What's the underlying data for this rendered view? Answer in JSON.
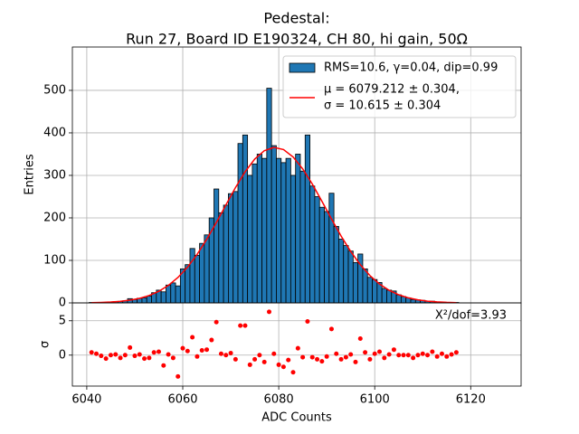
{
  "chart_data": [
    {
      "type": "histogram",
      "title": "Pedestal:",
      "subtitle": "Run 27, Board ID E190324, CH 80, hi gain, 50Ω",
      "ylabel": "Entries",
      "ylim": [
        0,
        602
      ],
      "yticks": [
        0,
        100,
        200,
        300,
        400,
        500
      ],
      "grid": true,
      "legend": "upper right",
      "bins": [
        6040.5,
        6041.5,
        6042.5,
        6043.5,
        6044.5,
        6045.5,
        6046.5,
        6047.5,
        6048.5,
        6049.5,
        6050.5,
        6051.5,
        6052.5,
        6053.5,
        6054.5,
        6055.5,
        6056.5,
        6057.5,
        6058.5,
        6059.5,
        6060.5,
        6061.5,
        6062.5,
        6063.5,
        6064.5,
        6065.5,
        6066.5,
        6067.5,
        6068.5,
        6069.5,
        6070.5,
        6071.5,
        6072.5,
        6073.5,
        6074.5,
        6075.5,
        6076.5,
        6077.5,
        6078.5,
        6079.5,
        6080.5,
        6081.5,
        6082.5,
        6083.5,
        6084.5,
        6085.5,
        6086.5,
        6087.5,
        6088.5,
        6089.5,
        6090.5,
        6091.5,
        6092.5,
        6093.5,
        6094.5,
        6095.5,
        6096.5,
        6097.5,
        6098.5,
        6099.5,
        6100.5,
        6101.5,
        6102.5,
        6103.5,
        6104.5,
        6105.5,
        6106.5,
        6107.5,
        6108.5,
        6109.5,
        6110.5,
        6111.5,
        6112.5,
        6113.5,
        6114.5,
        6115.5,
        6116.5,
        6117.5
      ],
      "series": [
        {
          "name": "RMS=10.6, γ=0.04, dip=0.99",
          "color": "#1f77b4",
          "values": [
            1,
            1,
            1,
            1,
            2,
            3,
            3,
            5,
            10,
            8,
            11,
            12,
            16,
            24,
            30,
            26,
            42,
            47,
            40,
            80,
            90,
            128,
            112,
            140,
            160,
            200,
            268,
            212,
            230,
            257,
            262,
            375,
            395,
            300,
            327,
            350,
            340,
            505,
            370,
            340,
            330,
            340,
            300,
            350,
            310,
            395,
            275,
            250,
            225,
            215,
            258,
            180,
            150,
            135,
            122,
            95,
            115,
            80,
            60,
            55,
            48,
            34,
            30,
            28,
            19,
            15,
            12,
            8,
            7,
            6,
            4,
            4,
            2,
            2,
            1,
            1,
            1
          ]
        },
        {
          "type": "line",
          "name": [
            "μ = 6079.212 ± 0.304,",
            "σ = 10.615 ± 0.304"
          ],
          "color": "#ff0000",
          "x": [
            6041,
            6043,
            6045,
            6047,
            6049,
            6051,
            6053,
            6055,
            6057,
            6059,
            6061,
            6063,
            6065,
            6067,
            6069,
            6071,
            6073,
            6075,
            6077,
            6079,
            6081,
            6083,
            6085,
            6087,
            6089,
            6091,
            6093,
            6095,
            6097,
            6099,
            6101,
            6103,
            6105,
            6107,
            6109,
            6111,
            6113,
            6115,
            6117
          ],
          "values": [
            0.6,
            1.1,
            2.0,
            3.7,
            6.4,
            10.7,
            17.4,
            27.2,
            41.1,
            59.8,
            84.2,
            114.2,
            149.6,
            189.1,
            230.7,
            271.6,
            308.6,
            338.4,
            358.2,
            365.9,
            360.8,
            343.3,
            315.2,
            279.4,
            239.0,
            197.3,
            157.2,
            120.9,
            89.7,
            64.3,
            44.4,
            29.6,
            19.1,
            11.9,
            7.1,
            4.1,
            2.3,
            1.2,
            0.6
          ]
        }
      ]
    },
    {
      "type": "scatter",
      "xlabel": "ADC Counts",
      "ylabel": "σ",
      "annotation": "X²/dof=3.93",
      "xlim": [
        6037,
        6130.5
      ],
      "xticks": [
        6040,
        6060,
        6080,
        6100,
        6120
      ],
      "ylim": [
        -4.5,
        7.6
      ],
      "yticks": [
        0,
        5
      ],
      "grid": true,
      "color": "#ff0000",
      "x": [
        6041,
        6042,
        6043,
        6044,
        6045,
        6046,
        6047,
        6048,
        6049,
        6050,
        6051,
        6052,
        6053,
        6054,
        6055,
        6056,
        6057,
        6058,
        6059,
        6060,
        6061,
        6062,
        6063,
        6064,
        6065,
        6066,
        6067,
        6068,
        6069,
        6070,
        6071,
        6072,
        6073,
        6074,
        6075,
        6076,
        6077,
        6078,
        6079,
        6080,
        6081,
        6082,
        6083,
        6084,
        6085,
        6086,
        6087,
        6088,
        6089,
        6090,
        6091,
        6092,
        6093,
        6094,
        6095,
        6096,
        6097,
        6098,
        6099,
        6100,
        6101,
        6102,
        6103,
        6104,
        6105,
        6106,
        6107,
        6108,
        6109,
        6110,
        6111,
        6112,
        6113,
        6114,
        6115,
        6116,
        6117
      ],
      "values": [
        0.4,
        0.2,
        -0.1,
        -0.5,
        0.0,
        0.1,
        -0.4,
        0.0,
        1.1,
        -0.1,
        0.1,
        -0.5,
        -0.4,
        0.4,
        0.5,
        -1.5,
        0.1,
        -0.4,
        -3.1,
        1.0,
        0.6,
        2.6,
        -0.2,
        0.7,
        0.8,
        2.2,
        4.8,
        0.2,
        0.0,
        0.3,
        -0.6,
        4.3,
        4.3,
        -1.4,
        -0.6,
        0.0,
        -1.0,
        6.3,
        0.2,
        -1.4,
        -1.7,
        -0.7,
        -2.5,
        1.0,
        -0.3,
        4.9,
        -0.3,
        -0.6,
        -0.9,
        -0.2,
        3.8,
        0.2,
        -0.6,
        -0.3,
        0.1,
        -1.0,
        2.4,
        0.4,
        -0.6,
        0.2,
        0.5,
        -0.4,
        0.1,
        0.8,
        0.0,
        0.0,
        0.0,
        -0.4,
        0.0,
        0.2,
        0.0,
        0.5,
        -0.2,
        0.2,
        -0.2,
        0.1,
        0.4
      ]
    }
  ]
}
